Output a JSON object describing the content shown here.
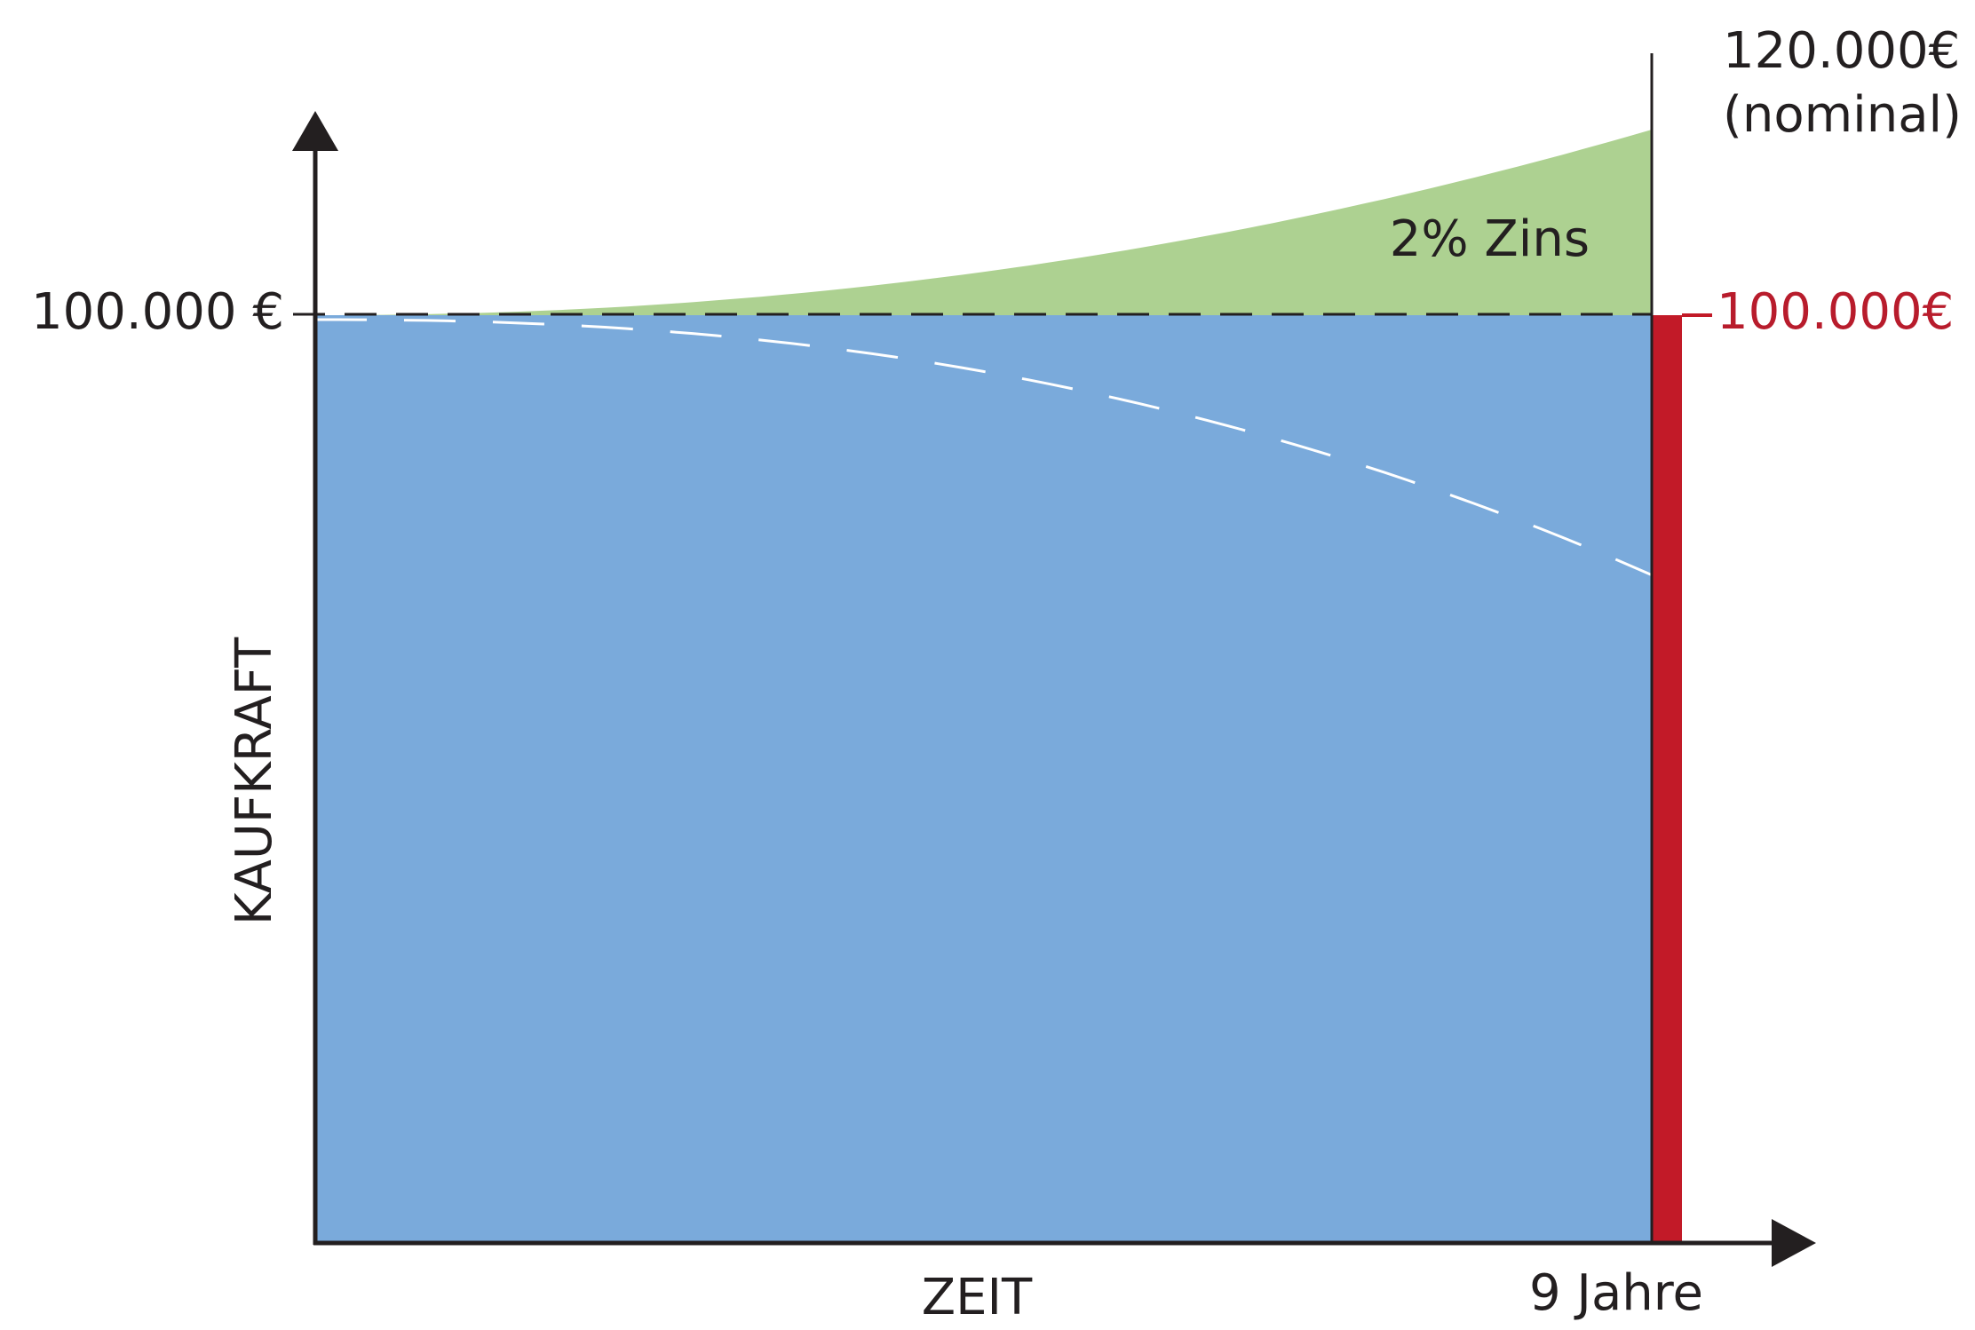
{
  "chart_data": {
    "type": "area",
    "xlabel": "ZEIT",
    "ylabel": "KAUFKRAFT",
    "x_end_label": "9 Jahre",
    "x": [
      0,
      9
    ],
    "xlim": [
      0,
      9
    ],
    "ylim": [
      0,
      120000
    ],
    "baseline": {
      "value": 100000,
      "label_left": "100.000 €",
      "label_right": "100.000€"
    },
    "nominal_end": {
      "value": 120000,
      "label_line1": "120.000€",
      "label_line2": "(nominal)"
    },
    "interest_area_label": "2% Zins",
    "series": [
      {
        "key": "nominal",
        "growth_rate": 0.02,
        "start": 100000,
        "end": 120000
      },
      {
        "key": "purchasing_power",
        "start": 100000,
        "end": 72000
      }
    ],
    "colors": {
      "blue_area": "#7aaadb",
      "green_area": "#add191",
      "red_bar": "#c21a28",
      "red_text": "#b81c2c",
      "axis": "#231f20",
      "dashed_baseline": "#231f20",
      "dashed_curve": "#ffffff"
    }
  }
}
